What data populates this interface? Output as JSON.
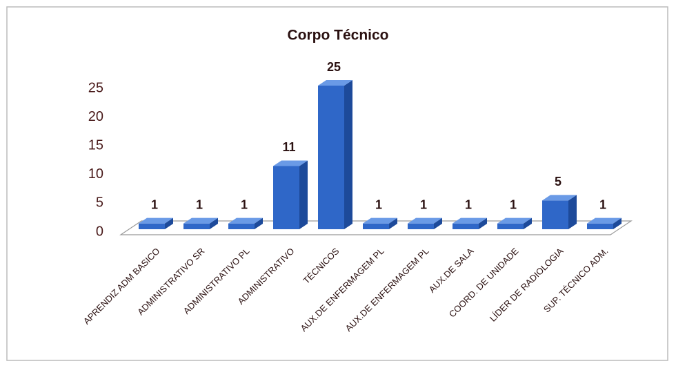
{
  "chart_data": {
    "type": "bar3d",
    "title": "Corpo Técnico",
    "categories": [
      "APRENDIZ ADM BASICO",
      "ADMINISTRATIVO SR",
      "ADMINISTRATIVO PL",
      "ADMINISTRATIVO",
      "TÉCNICOS",
      "AUX.DE ENFERMAGEM PL",
      "AUX.DE ENFERMAGEM PL",
      "AUX.DE SALA",
      "COORD. DE UNIDADE",
      "LÍDER DE RADIOLOGIA",
      "SUP. TÉCNICO ADM."
    ],
    "values": [
      1,
      1,
      1,
      11,
      25,
      1,
      1,
      1,
      1,
      5,
      1
    ],
    "color": "#2f67c8",
    "ylim": [
      0,
      25
    ],
    "yticks": [
      0,
      5,
      10,
      15,
      20,
      25
    ],
    "grid": false
  }
}
